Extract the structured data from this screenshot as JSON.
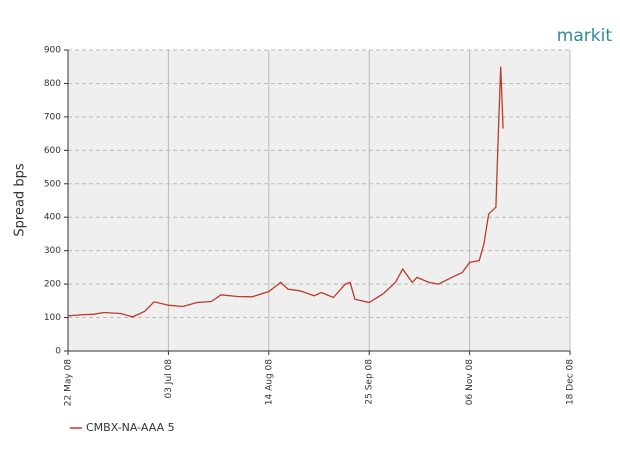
{
  "brand": "markit",
  "chart_data": {
    "type": "line",
    "ylabel": "Spread bps",
    "x": [
      "2008-05-22",
      "2008-05-27",
      "2008-06-02",
      "2008-06-06",
      "2008-06-13",
      "2008-06-18",
      "2008-06-23",
      "2008-06-27",
      "2008-07-03",
      "2008-07-09",
      "2008-07-15",
      "2008-07-21",
      "2008-07-25",
      "2008-08-01",
      "2008-08-07",
      "2008-08-14",
      "2008-08-19",
      "2008-08-22",
      "2008-08-27",
      "2008-09-02",
      "2008-09-05",
      "2008-09-10",
      "2008-09-15",
      "2008-09-17",
      "2008-09-19",
      "2008-09-25",
      "2008-10-01",
      "2008-10-06",
      "2008-10-09",
      "2008-10-13",
      "2008-10-15",
      "2008-10-20",
      "2008-10-24",
      "2008-10-29",
      "2008-11-03",
      "2008-11-06",
      "2008-11-10",
      "2008-11-12",
      "2008-11-14",
      "2008-11-17",
      "2008-11-18",
      "2008-11-19",
      "2008-11-20"
    ],
    "series": [
      {
        "name": "CMBX-NA-AAA 5",
        "color": "#c0392b",
        "values": [
          105,
          108,
          110,
          115,
          112,
          102,
          118,
          147,
          137,
          133,
          145,
          148,
          168,
          163,
          162,
          178,
          205,
          185,
          180,
          165,
          175,
          160,
          200,
          205,
          155,
          145,
          172,
          205,
          245,
          205,
          220,
          205,
          200,
          218,
          235,
          265,
          270,
          320,
          410,
          430,
          650,
          850,
          665
        ]
      }
    ],
    "xlim": [
      "2008-05-22",
      "2008-12-18"
    ],
    "xticks": [
      {
        "value": "2008-05-22",
        "label": "22 May 08"
      },
      {
        "value": "2008-07-03",
        "label": "03 Jul 08"
      },
      {
        "value": "2008-08-14",
        "label": "14 Aug 08"
      },
      {
        "value": "2008-09-25",
        "label": "25 Sep 08"
      },
      {
        "value": "2008-11-06",
        "label": "06 Nov 08"
      },
      {
        "value": "2008-12-18",
        "label": "18 Dec 08"
      }
    ],
    "ylim": [
      0,
      900
    ],
    "yticks": [
      0,
      100,
      200,
      300,
      400,
      500,
      600,
      700,
      800,
      900
    ],
    "grid": true,
    "legend": "bottom-left"
  }
}
